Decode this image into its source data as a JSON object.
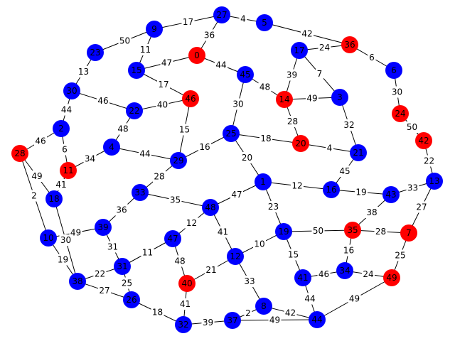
{
  "graph": {
    "colors": {
      "red": "#ff0000",
      "blue": "#0000ff",
      "edge": "#000000",
      "background": "#ffffff"
    },
    "nodes": [
      {
        "id": "0",
        "color": "red"
      },
      {
        "id": "1",
        "color": "blue"
      },
      {
        "id": "2",
        "color": "blue"
      },
      {
        "id": "3",
        "color": "blue"
      },
      {
        "id": "4",
        "color": "blue"
      },
      {
        "id": "5",
        "color": "blue"
      },
      {
        "id": "6",
        "color": "blue"
      },
      {
        "id": "7",
        "color": "red"
      },
      {
        "id": "8",
        "color": "blue"
      },
      {
        "id": "9",
        "color": "blue"
      },
      {
        "id": "10",
        "color": "blue"
      },
      {
        "id": "11",
        "color": "red"
      },
      {
        "id": "12",
        "color": "blue"
      },
      {
        "id": "13",
        "color": "blue"
      },
      {
        "id": "14",
        "color": "red"
      },
      {
        "id": "15",
        "color": "blue"
      },
      {
        "id": "16",
        "color": "blue"
      },
      {
        "id": "17",
        "color": "blue"
      },
      {
        "id": "18",
        "color": "blue"
      },
      {
        "id": "19",
        "color": "blue"
      },
      {
        "id": "20",
        "color": "red"
      },
      {
        "id": "21",
        "color": "blue"
      },
      {
        "id": "22",
        "color": "blue"
      },
      {
        "id": "23",
        "color": "blue"
      },
      {
        "id": "24",
        "color": "red"
      },
      {
        "id": "25",
        "color": "blue"
      },
      {
        "id": "26",
        "color": "blue"
      },
      {
        "id": "27",
        "color": "blue"
      },
      {
        "id": "28",
        "color": "red"
      },
      {
        "id": "29",
        "color": "blue"
      },
      {
        "id": "30",
        "color": "blue"
      },
      {
        "id": "31",
        "color": "blue"
      },
      {
        "id": "32",
        "color": "blue"
      },
      {
        "id": "33",
        "color": "blue"
      },
      {
        "id": "34",
        "color": "blue"
      },
      {
        "id": "35",
        "color": "red"
      },
      {
        "id": "36",
        "color": "red"
      },
      {
        "id": "37",
        "color": "blue"
      },
      {
        "id": "38",
        "color": "blue"
      },
      {
        "id": "39",
        "color": "blue"
      },
      {
        "id": "40",
        "color": "red"
      },
      {
        "id": "41",
        "color": "blue"
      },
      {
        "id": "42",
        "color": "red"
      },
      {
        "id": "43",
        "color": "blue"
      },
      {
        "id": "44",
        "color": "blue"
      },
      {
        "id": "45",
        "color": "blue"
      },
      {
        "id": "46",
        "color": "red"
      },
      {
        "id": "47",
        "color": "blue"
      },
      {
        "id": "48",
        "color": "blue"
      },
      {
        "id": "49",
        "color": "red"
      }
    ],
    "edges": [
      {
        "source": "9",
        "target": "27",
        "label": "17"
      },
      {
        "source": "27",
        "target": "5",
        "label": "4"
      },
      {
        "source": "5",
        "target": "36",
        "label": "42"
      },
      {
        "source": "23",
        "target": "9",
        "label": "50"
      },
      {
        "source": "23",
        "target": "30",
        "label": "13"
      },
      {
        "source": "28",
        "target": "2",
        "label": "46"
      },
      {
        "source": "28",
        "target": "18",
        "label": "49"
      },
      {
        "source": "28",
        "target": "10",
        "label": "2"
      },
      {
        "source": "10",
        "target": "38",
        "label": "19"
      },
      {
        "source": "38",
        "target": "26",
        "label": "27"
      },
      {
        "source": "26",
        "target": "32",
        "label": "18"
      },
      {
        "source": "32",
        "target": "37",
        "label": "39"
      },
      {
        "source": "37",
        "target": "44",
        "label": "49"
      },
      {
        "source": "44",
        "target": "49",
        "label": "49"
      },
      {
        "source": "49",
        "target": "7",
        "label": "25"
      },
      {
        "source": "7",
        "target": "13",
        "label": "27"
      },
      {
        "source": "13",
        "target": "42",
        "label": "22"
      },
      {
        "source": "42",
        "target": "24",
        "label": "50"
      },
      {
        "source": "24",
        "target": "6",
        "label": "30"
      },
      {
        "source": "6",
        "target": "36",
        "label": "6"
      },
      {
        "source": "36",
        "target": "17",
        "label": "24"
      },
      {
        "source": "17",
        "target": "14",
        "label": "39"
      },
      {
        "source": "14",
        "target": "3",
        "label": "49"
      },
      {
        "source": "3",
        "target": "21",
        "label": "32"
      },
      {
        "source": "21",
        "target": "16",
        "label": "45"
      },
      {
        "source": "16",
        "target": "43",
        "label": "19"
      },
      {
        "source": "43",
        "target": "35",
        "label": "38"
      },
      {
        "source": "35",
        "target": "34",
        "label": "16"
      },
      {
        "source": "34",
        "target": "49",
        "label": "24"
      },
      {
        "source": "41",
        "target": "44",
        "label": "44"
      },
      {
        "source": "41",
        "target": "19",
        "label": "15"
      },
      {
        "source": "19",
        "target": "12",
        "label": "10"
      },
      {
        "source": "12",
        "target": "8",
        "label": "33"
      },
      {
        "source": "8",
        "target": "37",
        "label": "2"
      },
      {
        "source": "12",
        "target": "40",
        "label": "21"
      },
      {
        "source": "40",
        "target": "32",
        "label": "41"
      },
      {
        "source": "40",
        "target": "47",
        "label": "48"
      },
      {
        "source": "47",
        "target": "31",
        "label": "11"
      },
      {
        "source": "31",
        "target": "26",
        "label": "25"
      },
      {
        "source": "31",
        "target": "38",
        "label": "22"
      },
      {
        "source": "39",
        "target": "10",
        "label": "49"
      },
      {
        "source": "39",
        "target": "31",
        "label": "31"
      },
      {
        "source": "39",
        "target": "33",
        "label": "36"
      },
      {
        "source": "33",
        "target": "29",
        "label": "28"
      },
      {
        "source": "33",
        "target": "48",
        "label": "35"
      },
      {
        "source": "48",
        "target": "47",
        "label": "12"
      },
      {
        "source": "48",
        "target": "12",
        "label": "41"
      },
      {
        "source": "48",
        "target": "1",
        "label": "47"
      },
      {
        "source": "1",
        "target": "19",
        "label": "23"
      },
      {
        "source": "1",
        "target": "16",
        "label": "12"
      },
      {
        "source": "1",
        "target": "25",
        "label": "20"
      },
      {
        "source": "25",
        "target": "20",
        "label": "18"
      },
      {
        "source": "20",
        "target": "21",
        "label": "4"
      },
      {
        "source": "20",
        "target": "14",
        "label": "28"
      },
      {
        "source": "25",
        "target": "45",
        "label": "30"
      },
      {
        "source": "45",
        "target": "0",
        "label": "44"
      },
      {
        "source": "0",
        "target": "27",
        "label": "36"
      },
      {
        "source": "0",
        "target": "15",
        "label": "47"
      },
      {
        "source": "15",
        "target": "9",
        "label": "11"
      },
      {
        "source": "15",
        "target": "46",
        "label": "17"
      },
      {
        "source": "46",
        "target": "22",
        "label": "40"
      },
      {
        "source": "22",
        "target": "30",
        "label": "46"
      },
      {
        "source": "22",
        "target": "4",
        "label": "48"
      },
      {
        "source": "4",
        "target": "11",
        "label": "34"
      },
      {
        "source": "11",
        "target": "2",
        "label": "6"
      },
      {
        "source": "11",
        "target": "18",
        "label": "41"
      },
      {
        "source": "4",
        "target": "29",
        "label": "44"
      },
      {
        "source": "29",
        "target": "25",
        "label": "16"
      },
      {
        "source": "46",
        "target": "29",
        "label": "15"
      },
      {
        "source": "45",
        "target": "14",
        "label": "48"
      },
      {
        "source": "17",
        "target": "3",
        "label": "7"
      },
      {
        "source": "43",
        "target": "13",
        "label": "33"
      },
      {
        "source": "35",
        "target": "7",
        "label": "28"
      },
      {
        "source": "19",
        "target": "35",
        "label": "50"
      },
      {
        "source": "41",
        "target": "34",
        "label": "46"
      },
      {
        "source": "8",
        "target": "44",
        "label": "42"
      },
      {
        "source": "18",
        "target": "38",
        "label": "30"
      },
      {
        "source": "2",
        "target": "30",
        "label": "44"
      }
    ]
  }
}
